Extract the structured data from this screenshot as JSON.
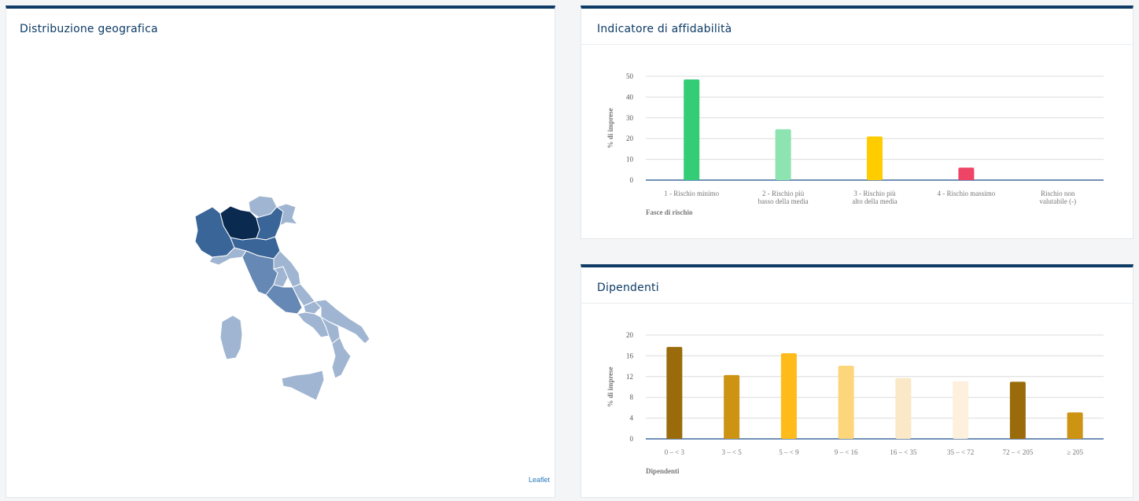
{
  "geo": {
    "title": "Distribuzione geografica",
    "attribution": "Leaflet",
    "colors": {
      "darkest": "#0a2a50",
      "dark": "#3a6598",
      "medium": "#6688b4",
      "light": "#9fb5d1"
    }
  },
  "affidabilita": {
    "title": "Indicatore di affidabilità"
  },
  "dipendenti": {
    "title": "Dipendenti"
  },
  "chart_data": [
    {
      "type": "bar",
      "title": "Indicatore di affidabilità",
      "xlabel": "Fasce di rischio",
      "ylabel": "% di imprese",
      "ylim": [
        0,
        50
      ],
      "yticks": [
        0,
        10,
        20,
        30,
        40,
        50
      ],
      "grid": true,
      "categories": [
        [
          "1 - Rischio minimo"
        ],
        [
          "2 - Rischio più",
          "basso della media"
        ],
        [
          "3 - Rischio più",
          "alto della media"
        ],
        [
          "4 - Rischio massimo"
        ],
        [
          "Rischio non",
          "valutabile (-)"
        ]
      ],
      "values": [
        48.5,
        24.5,
        21,
        6,
        0
      ],
      "colors": [
        "#33cc77",
        "#8de4b0",
        "#ffcc00",
        "#ee4466",
        "#cccccc"
      ]
    },
    {
      "type": "bar",
      "title": "Dipendenti",
      "xlabel": "Dipendenti",
      "ylabel": "% di imprese",
      "ylim": [
        0,
        20
      ],
      "yticks": [
        0,
        4,
        8,
        12,
        16,
        20
      ],
      "grid": true,
      "categories": [
        [
          "0 – < 3"
        ],
        [
          "3 – < 5"
        ],
        [
          "5 – < 9"
        ],
        [
          "9 – < 16"
        ],
        [
          "16 – < 35"
        ],
        [
          "35 – < 72"
        ],
        [
          "72 – < 205"
        ],
        [
          "≥ 205"
        ]
      ],
      "values": [
        17.7,
        12.3,
        16.5,
        14.1,
        11.7,
        11.1,
        11.0,
        5.1
      ],
      "colors": [
        "#9a6b0a",
        "#cc9412",
        "#ffbb1a",
        "#fdd57a",
        "#fbe8c6",
        "#fdf0dc",
        "#9a6b0a",
        "#cc9412"
      ]
    }
  ]
}
